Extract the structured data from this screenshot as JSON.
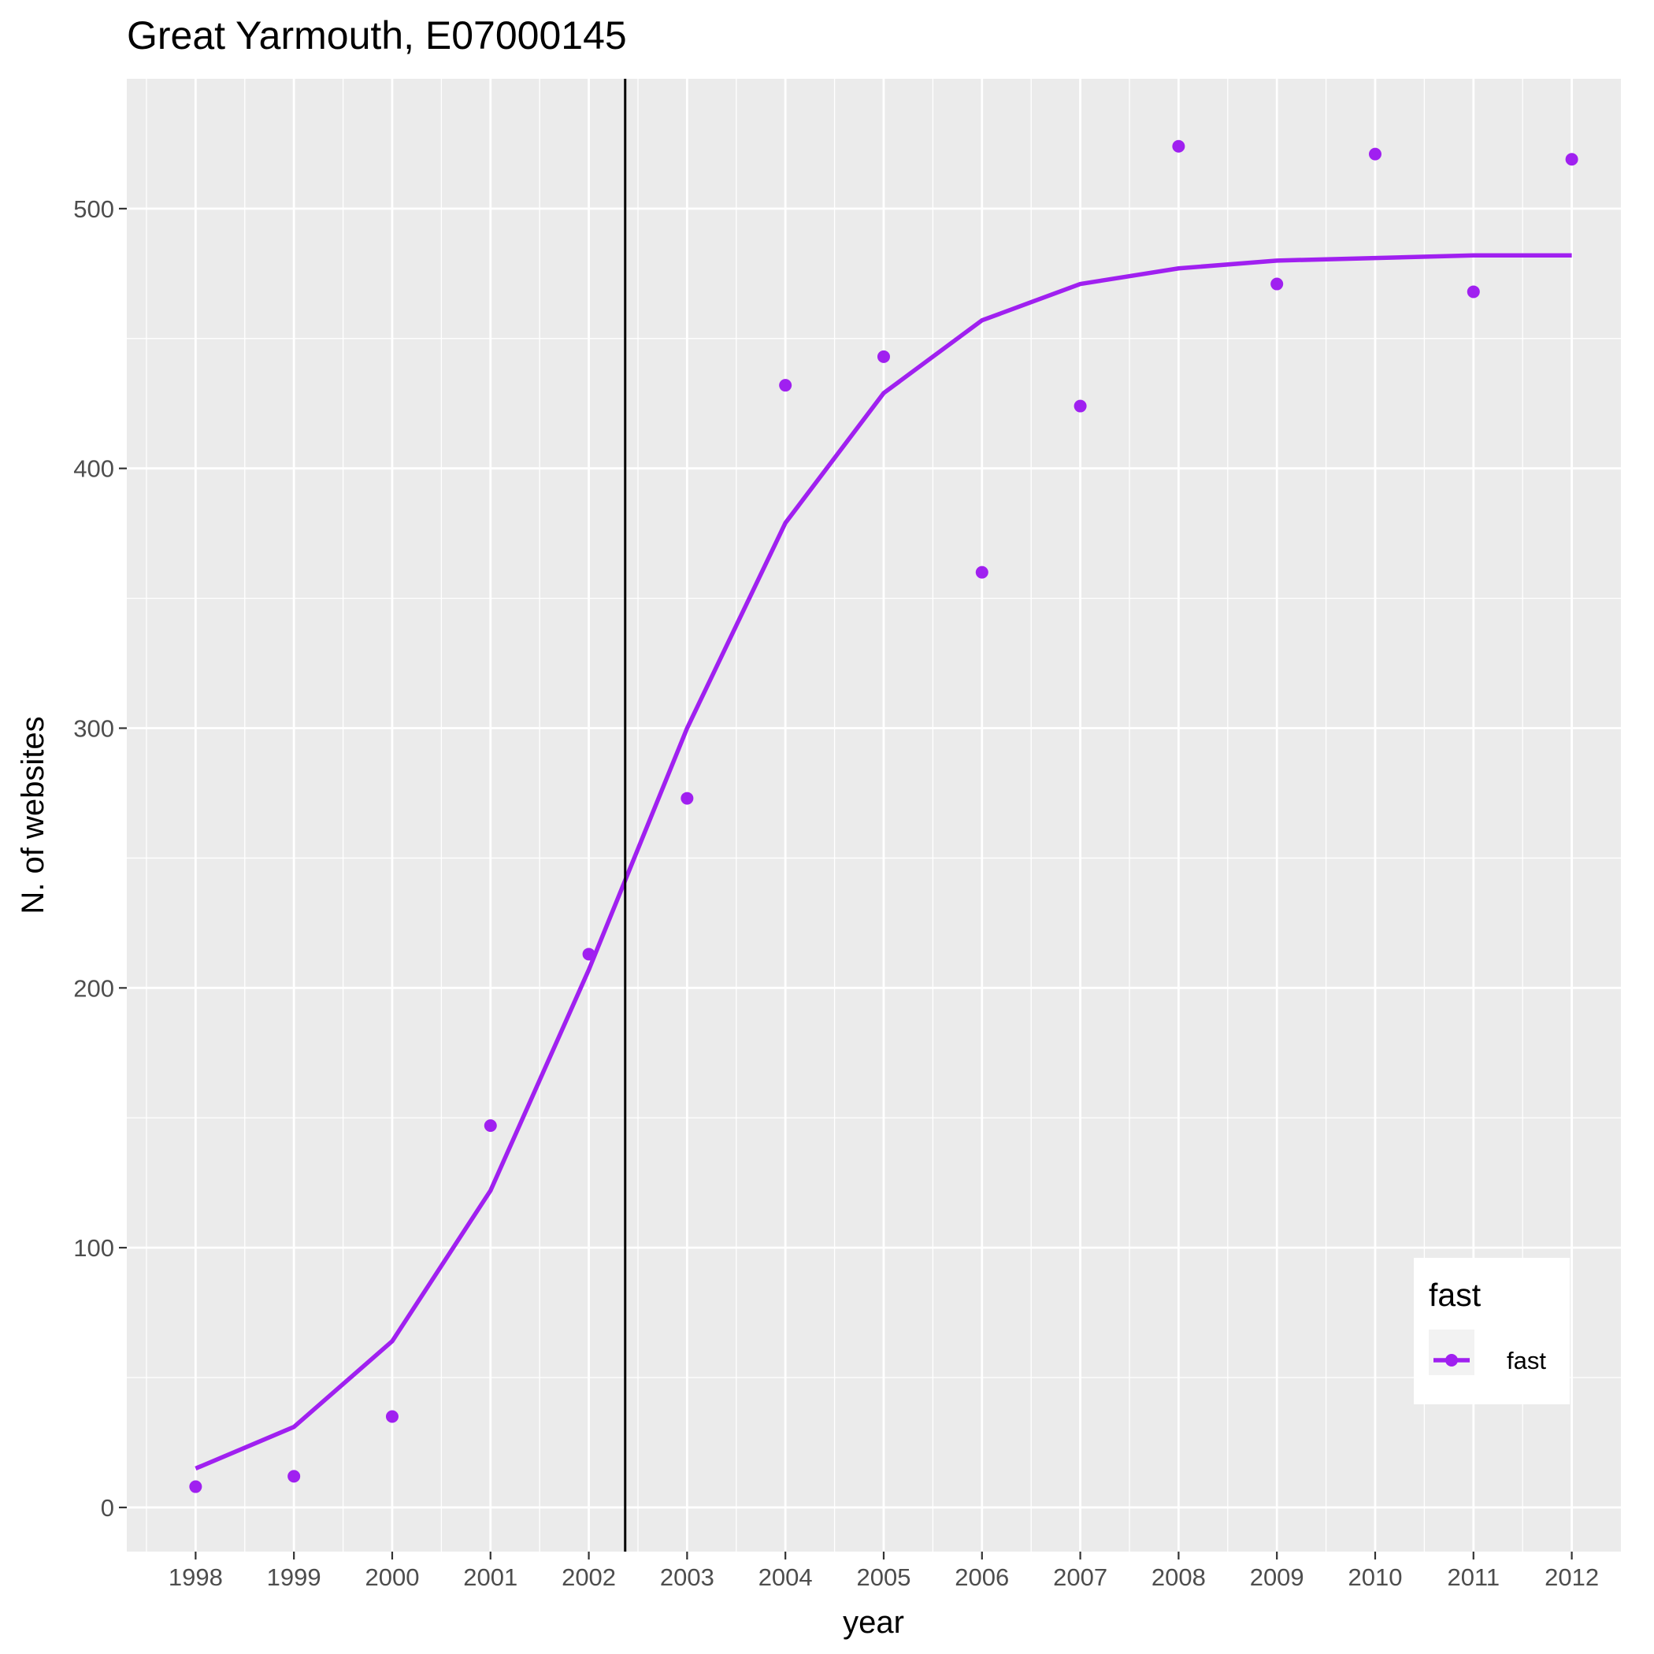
{
  "chart_data": {
    "type": "scatter",
    "title": "Great Yarmouth, E07000145",
    "xlabel": "year",
    "ylabel": "N. of websites",
    "x_ticks": [
      1998,
      1999,
      2000,
      2001,
      2002,
      2003,
      2004,
      2005,
      2006,
      2007,
      2008,
      2009,
      2010,
      2011,
      2012
    ],
    "y_ticks": [
      0,
      100,
      200,
      300,
      400,
      500
    ],
    "xlim": [
      1997.3,
      2012.5
    ],
    "ylim": [
      -17,
      550
    ],
    "grid": true,
    "vline_x": 2002.37,
    "color": "#a020f0",
    "legend": {
      "title": "fast",
      "entries": [
        "fast"
      ],
      "placement": "bottom-right inside"
    },
    "series": [
      {
        "name": "fast",
        "points": [
          {
            "x": 1998,
            "y": 8
          },
          {
            "x": 1999,
            "y": 12
          },
          {
            "x": 2000,
            "y": 35
          },
          {
            "x": 2001,
            "y": 147
          },
          {
            "x": 2002,
            "y": 213
          },
          {
            "x": 2003,
            "y": 273
          },
          {
            "x": 2004,
            "y": 432
          },
          {
            "x": 2005,
            "y": 443
          },
          {
            "x": 2006,
            "y": 360
          },
          {
            "x": 2007,
            "y": 424
          },
          {
            "x": 2008,
            "y": 524
          },
          {
            "x": 2009,
            "y": 471
          },
          {
            "x": 2010,
            "y": 521
          },
          {
            "x": 2011,
            "y": 468
          },
          {
            "x": 2012,
            "y": 519
          }
        ],
        "fit": [
          {
            "x": 1998,
            "y": 15
          },
          {
            "x": 1999,
            "y": 31
          },
          {
            "x": 2000,
            "y": 64
          },
          {
            "x": 2001,
            "y": 122
          },
          {
            "x": 2002,
            "y": 207
          },
          {
            "x": 2003,
            "y": 300
          },
          {
            "x": 2004,
            "y": 379
          },
          {
            "x": 2005,
            "y": 429
          },
          {
            "x": 2006,
            "y": 457
          },
          {
            "x": 2007,
            "y": 471
          },
          {
            "x": 2008,
            "y": 477
          },
          {
            "x": 2009,
            "y": 480
          },
          {
            "x": 2010,
            "y": 481
          },
          {
            "x": 2011,
            "y": 482
          },
          {
            "x": 2012,
            "y": 482
          }
        ]
      }
    ]
  }
}
